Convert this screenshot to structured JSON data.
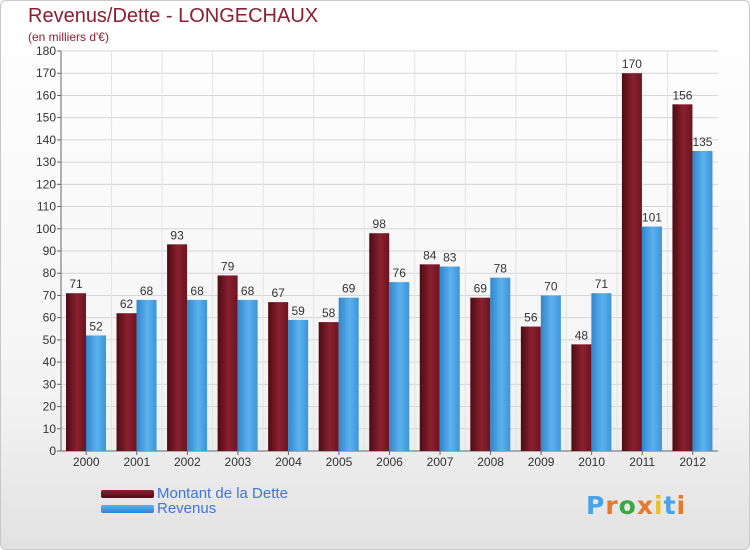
{
  "title": "Revenus/Dette - LONGECHAUX",
  "subtitle": "(en milliers d'€)",
  "colors": {
    "title": "#8b1e33",
    "dette": "#7a1a22",
    "revenus": "#4aa3e6",
    "legend_text": "#3f74d9"
  },
  "chart_data": {
    "type": "bar",
    "title": "Revenus/Dette - LONGECHAUX",
    "ylabel": "(en milliers d'€)",
    "xlabel": "",
    "categories": [
      "2000",
      "2001",
      "2002",
      "2003",
      "2004",
      "2005",
      "2006",
      "2007",
      "2008",
      "2009",
      "2010",
      "2011",
      "2012"
    ],
    "series": [
      {
        "name": "Montant de la Dette",
        "values": [
          71,
          62,
          93,
          79,
          67,
          58,
          98,
          84,
          69,
          56,
          48,
          170,
          156
        ]
      },
      {
        "name": "Revenus",
        "values": [
          52,
          68,
          68,
          68,
          59,
          69,
          76,
          83,
          78,
          70,
          71,
          101,
          135
        ]
      }
    ],
    "ylim": [
      0,
      180
    ],
    "yticks": [
      0,
      10,
      20,
      30,
      40,
      50,
      60,
      70,
      80,
      90,
      100,
      110,
      120,
      130,
      140,
      150,
      160,
      170,
      180
    ],
    "grid": true,
    "legend": "bottom-left"
  },
  "legend": {
    "dette": "Montant de la Dette",
    "revenus": "Revenus"
  },
  "logo": {
    "text": "Proxiti",
    "letters": [
      "P",
      "r",
      "o",
      "x",
      "i",
      "t",
      "i"
    ],
    "colors": [
      "#4aa3e6",
      "#e8782a",
      "#3aa845",
      "#e8782a",
      "#e8c22a",
      "#4aa3e6",
      "#e8782a"
    ]
  }
}
